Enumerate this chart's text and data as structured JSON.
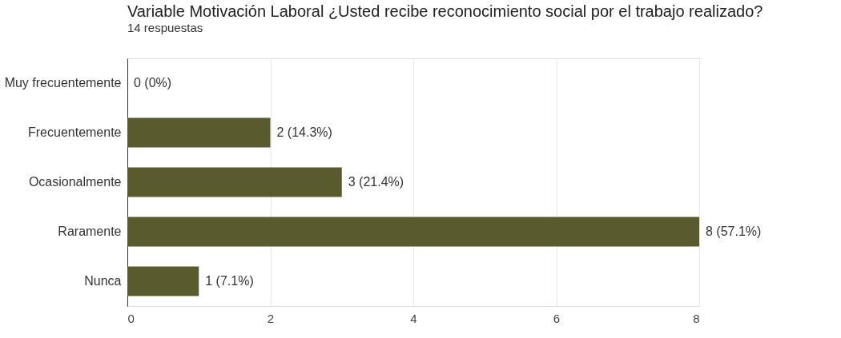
{
  "chart_data": {
    "type": "bar",
    "orientation": "horizontal",
    "title": "Variable Motivación Laboral ¿Usted recibe reconocimiento social por el trabajo realizado?",
    "subtitle": "14 respuestas",
    "categories": [
      "Muy frecuentemente",
      "Frecuentemente",
      "Ocasionalmente",
      "Raramente",
      "Nunca"
    ],
    "values": [
      0,
      2,
      3,
      8,
      1
    ],
    "value_labels": [
      "0 (0%)",
      "2 (14.3%)",
      "3 (21.4%)",
      "8 (57.1%)",
      "1 (7.1%)"
    ],
    "color": "#5a5a2f",
    "xlim": [
      0,
      8
    ],
    "xticks": [
      0,
      2,
      4,
      6,
      8
    ],
    "grid": "x"
  }
}
